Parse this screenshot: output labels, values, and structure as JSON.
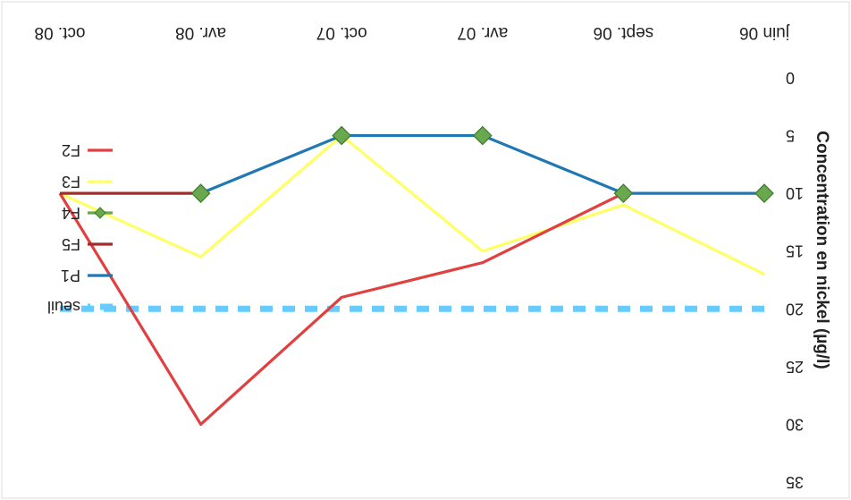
{
  "chart_data": {
    "type": "line",
    "orientation": "rotated-180",
    "categories": [
      "juin 06",
      "sept. 06",
      "avr. 07",
      "oct. 07",
      "avr. 08",
      "oct. 08"
    ],
    "ylabel": "Concentration en nickel (µg/l)",
    "ylim": [
      0,
      35
    ],
    "yticks": [
      0,
      5,
      10,
      15,
      20,
      25,
      30,
      35
    ],
    "grid": false,
    "legend_position": "bottom-left",
    "series": [
      {
        "name": "P1",
        "color": "#1f77b4",
        "marker": "none",
        "dashed": false,
        "values": [
          10,
          10,
          5,
          5,
          10,
          null
        ]
      },
      {
        "name": "F4",
        "color": "#6aa84f",
        "marker": "diamond",
        "dashed": false,
        "values": [
          10,
          10,
          5,
          5,
          10,
          null
        ]
      },
      {
        "name": "F5",
        "color": "#a52a2a",
        "marker": "none",
        "dashed": false,
        "values": [
          null,
          null,
          null,
          null,
          10,
          10
        ]
      },
      {
        "name": "F3",
        "color": "#ffff66",
        "marker": "none",
        "dashed": false,
        "values": [
          17,
          11,
          15,
          5,
          15.5,
          10
        ]
      },
      {
        "name": "F2",
        "color": "#e04040",
        "marker": "none",
        "dashed": false,
        "values": [
          null,
          10,
          16,
          19,
          30,
          10
        ]
      },
      {
        "name": "seuil",
        "color": "#66ccff",
        "marker": "none",
        "dashed": true,
        "values": [
          20,
          20,
          20,
          20,
          20,
          20
        ]
      }
    ],
    "legend_order": [
      "seuil",
      "P1",
      "F5",
      "F4",
      "F3",
      "F2"
    ]
  }
}
